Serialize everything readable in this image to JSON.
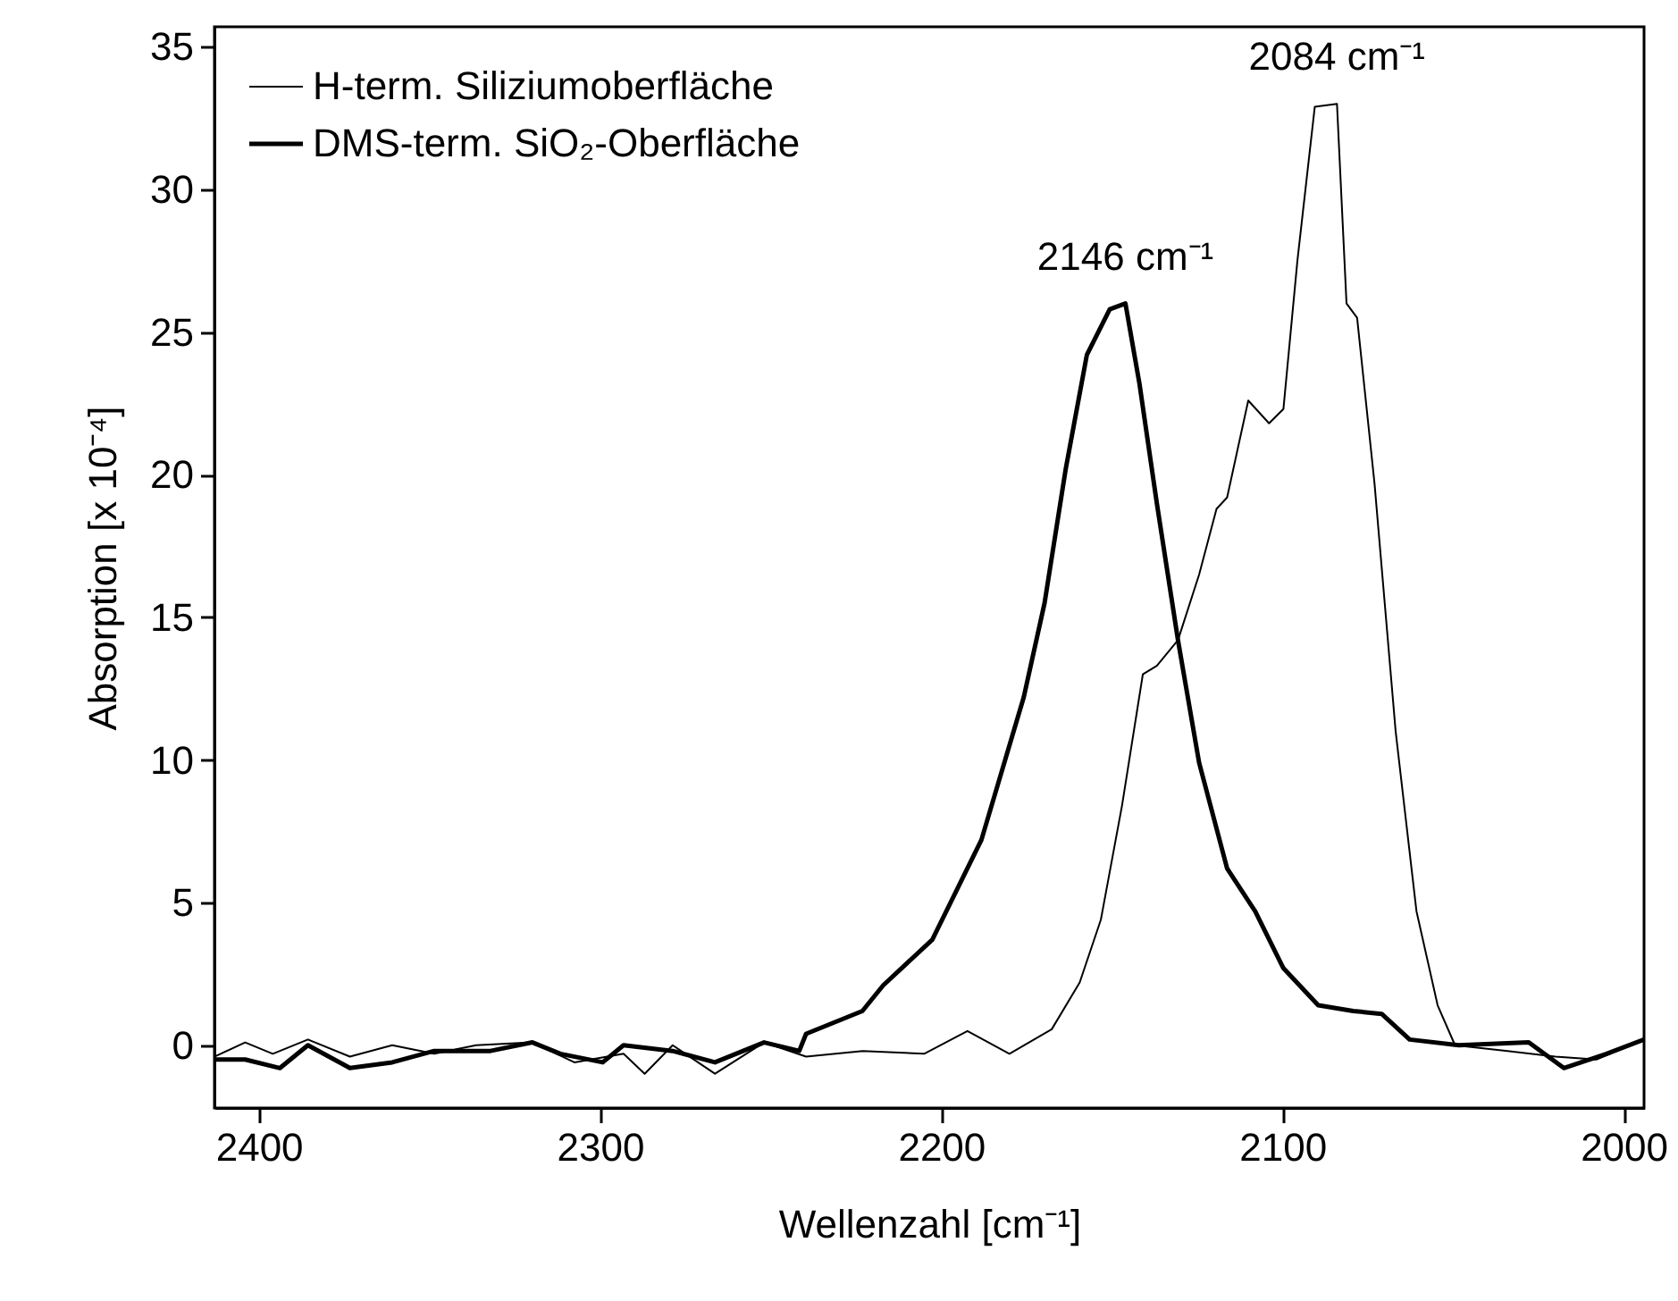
{
  "chart_data": {
    "type": "line",
    "xlabel": "Wellenzahl [cm⁻¹]",
    "ylabel": "Absorption [x 10⁻⁴]",
    "xlim": [
      2413,
      1994
    ],
    "xticks": [
      2400,
      2300,
      2200,
      2100,
      2000
    ],
    "ylim": [
      -2.2,
      35.7
    ],
    "yticks": [
      0,
      5,
      10,
      15,
      20,
      25,
      30,
      35
    ],
    "grid": false,
    "legend": "top left",
    "line_style": "solid",
    "marker": "none",
    "annotations": [
      {
        "text": "2146 cm⁻¹",
        "x": 2146,
        "y": 26
      },
      {
        "text": "2084 cm⁻¹",
        "x": 2084,
        "y": 33
      }
    ],
    "series": [
      {
        "name": "H-term. Siliziumoberfläche",
        "color": "#000000",
        "x": [
          2413,
          2404,
          2395.9,
          2385.6,
          2373.3,
          2360.9,
          2348.6,
          2336.3,
          2319.8,
          2307.5,
          2293.1,
          2286.9,
          2278.7,
          2266.3,
          2251.9,
          2239.6,
          2223,
          2205,
          2192.3,
          2180,
          2167.6,
          2159.4,
          2153.2,
          2147,
          2140.9,
          2136.8,
          2130.6,
          2124.4,
          2119.3,
          2116.2,
          2110,
          2103.9,
          2099.7,
          2095.6,
          2090.5,
          2084,
          2081.2,
          2078.1,
          2073,
          2066.8,
          2060.7,
          2054.5,
          2049.4,
          2034,
          2020,
          2008,
          1994
        ],
        "values": [
          -0.4,
          0.1,
          -0.3,
          0.2,
          -0.4,
          0,
          -0.3,
          0,
          0.1,
          -0.6,
          -0.3,
          -1.0,
          0,
          -1.0,
          0.1,
          -0.4,
          -0.2,
          -0.3,
          0.5,
          -0.3,
          0.56,
          2.2,
          4.4,
          8.4,
          13.0,
          13.3,
          14.2,
          16.5,
          18.8,
          19.2,
          22.6,
          21.8,
          22.3,
          27.5,
          32.9,
          33,
          26.0,
          25.5,
          19.7,
          11.0,
          4.7,
          1.4,
          0,
          -0.2,
          -0.4,
          -0.5,
          0.2
        ]
      },
      {
        "name": "DMS-term. SiO₂-Oberfläche",
        "color": "#000000",
        "x": [
          2413,
          2404,
          2393.8,
          2385.6,
          2373.3,
          2360.9,
          2348.6,
          2332.1,
          2319.8,
          2311.6,
          2299.2,
          2293.1,
          2278.7,
          2266.3,
          2251.9,
          2241.6,
          2239.6,
          2223.1,
          2217,
          2202.6,
          2188.2,
          2175.8,
          2169.7,
          2163.5,
          2157.3,
          2150.6,
          2146,
          2141.9,
          2136.8,
          2130.6,
          2124.4,
          2116.2,
          2108,
          2099.7,
          2089.5,
          2079.2,
          2070.9,
          2062.7,
          2048.3,
          2027.8,
          2017.5,
          2005,
          1994
        ],
        "values": [
          -0.5,
          -0.5,
          -0.8,
          0,
          -0.8,
          -0.6,
          -0.2,
          -0.2,
          0.1,
          -0.3,
          -0.6,
          0,
          -0.2,
          -0.6,
          0.1,
          -0.2,
          0.4,
          1.2,
          2.1,
          3.7,
          7.2,
          12.2,
          15.5,
          20.2,
          24.2,
          25.8,
          26,
          23.2,
          19.0,
          14.2,
          9.9,
          6.2,
          4.7,
          2.7,
          1.4,
          1.2,
          1.1,
          0.2,
          0,
          0.1,
          -0.8,
          -0.3,
          0.2
        ]
      }
    ]
  }
}
